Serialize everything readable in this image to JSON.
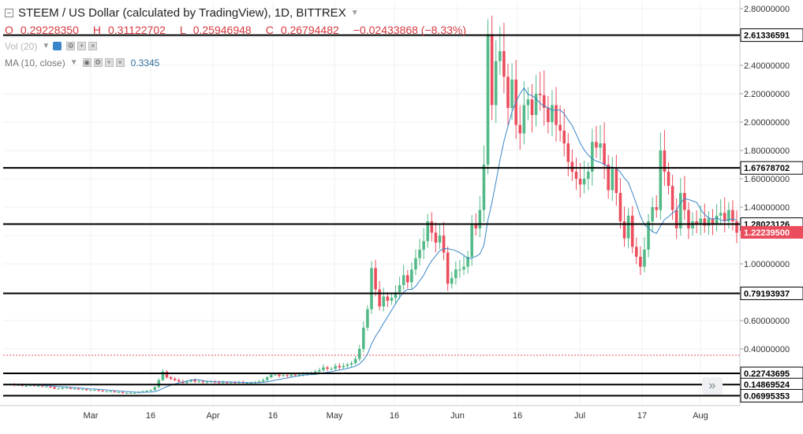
{
  "window": {
    "width": 1018,
    "height": 551
  },
  "header": {
    "title": "STEEM / US Dollar (calculated by TradingView), 1D, BITTREX",
    "ohlc": {
      "open_label": "O",
      "open": "0.29228350",
      "high_label": "H",
      "high": "0.31122702",
      "low_label": "L",
      "low": "0.25946948",
      "close_label": "C",
      "close": "0.26794482",
      "change": "−0.02433868 (−8.33%)"
    },
    "volume_label": "Vol (20)",
    "ma_label": "MA (10, close)",
    "ma_value": "0.3345"
  },
  "colors": {
    "up": "#53b987",
    "down": "#eb4d5c",
    "ma": "#3a86c8",
    "line": "#000000",
    "axis_text": "#333333",
    "price_tag_bg": "#eb4d5c"
  },
  "icons": {
    "collapse": "square-minus-icon",
    "visibility": "eye-icon",
    "settings": "gear-icon",
    "add": "plus-icon",
    "close": "close-icon",
    "scroll": "double-chevron-right-icon"
  },
  "chart_data": {
    "type": "candlestick",
    "title": "STEEM / US Dollar (calculated by TradingView), 1D, BITTREX",
    "x_ticks": [
      "Mar",
      "16",
      "Apr",
      "16",
      "May",
      "16",
      "Jun",
      "16",
      "Jul",
      "17",
      "Aug"
    ],
    "y_ticks": [
      "2.80000000",
      "2.60000000",
      "2.40000000",
      "2.20000000",
      "2.00000000",
      "1.80000000",
      "1.60000000",
      "1.40000000",
      "1.20000000",
      "1.00000000",
      "0.80000000",
      "0.60000000",
      "0.40000000"
    ],
    "ylim": [
      0.0,
      2.85
    ],
    "horizontal_levels": [
      "2.61336591",
      "1.67678702",
      "1.28023126",
      "0.79193937",
      "0.22743695",
      "0.14869524",
      "0.06995353"
    ],
    "last_price": "1.22239500",
    "grid": true,
    "close_series": [
      0.15,
      0.15,
      0.145,
      0.145,
      0.14,
      0.14,
      0.145,
      0.14,
      0.14,
      0.135,
      0.135,
      0.13,
      0.12,
      0.12,
      0.125,
      0.125,
      0.12,
      0.12,
      0.115,
      0.115,
      0.11,
      0.11,
      0.11,
      0.105,
      0.1,
      0.1,
      0.1,
      0.095,
      0.095,
      0.09,
      0.09,
      0.09,
      0.09,
      0.095,
      0.1,
      0.105,
      0.11,
      0.13,
      0.18,
      0.24,
      0.2,
      0.19,
      0.18,
      0.17,
      0.16,
      0.17,
      0.18,
      0.17,
      0.17,
      0.165,
      0.17,
      0.17,
      0.165,
      0.16,
      0.165,
      0.16,
      0.165,
      0.16,
      0.165,
      0.16,
      0.16,
      0.16,
      0.165,
      0.17,
      0.18,
      0.2,
      0.22,
      0.22,
      0.21,
      0.215,
      0.21,
      0.22,
      0.215,
      0.22,
      0.22,
      0.23,
      0.23,
      0.24,
      0.25,
      0.27,
      0.26,
      0.26,
      0.28,
      0.27,
      0.28,
      0.29,
      0.3,
      0.33,
      0.4,
      0.55,
      0.68,
      0.97,
      0.82,
      0.7,
      0.77,
      0.74,
      0.76,
      0.8,
      0.85,
      0.92,
      0.87,
      0.96,
      1.04,
      1.1,
      1.16,
      1.3,
      1.22,
      1.15,
      1.2,
      1.08,
      0.86,
      0.9,
      0.96,
      0.96,
      0.98,
      1.05,
      1.28,
      1.25,
      1.38,
      1.7,
      2.62,
      2.12,
      2.43,
      2.5,
      2.32,
      2.1,
      2.3,
      1.98,
      1.92,
      2.12,
      2.16,
      2.05,
      2.2,
      2.19,
      2.1,
      2.0,
      2.12,
      1.98,
      1.94,
      1.85,
      1.72,
      1.65,
      1.6,
      1.56,
      1.6,
      1.65,
      1.86,
      1.82,
      1.85,
      1.7,
      1.52,
      1.67,
      1.5,
      1.3,
      1.18,
      1.34,
      1.12,
      1.05,
      0.98,
      1.1,
      1.3,
      1.4,
      1.38,
      1.8,
      1.65,
      1.55,
      1.38,
      1.25,
      1.5,
      1.38,
      1.25,
      1.3,
      1.28,
      1.32,
      1.27,
      1.32,
      1.28,
      1.34,
      1.36,
      1.3,
      1.38,
      1.3,
      1.22
    ],
    "ma_period": 10,
    "ma_value": "0.3345"
  }
}
